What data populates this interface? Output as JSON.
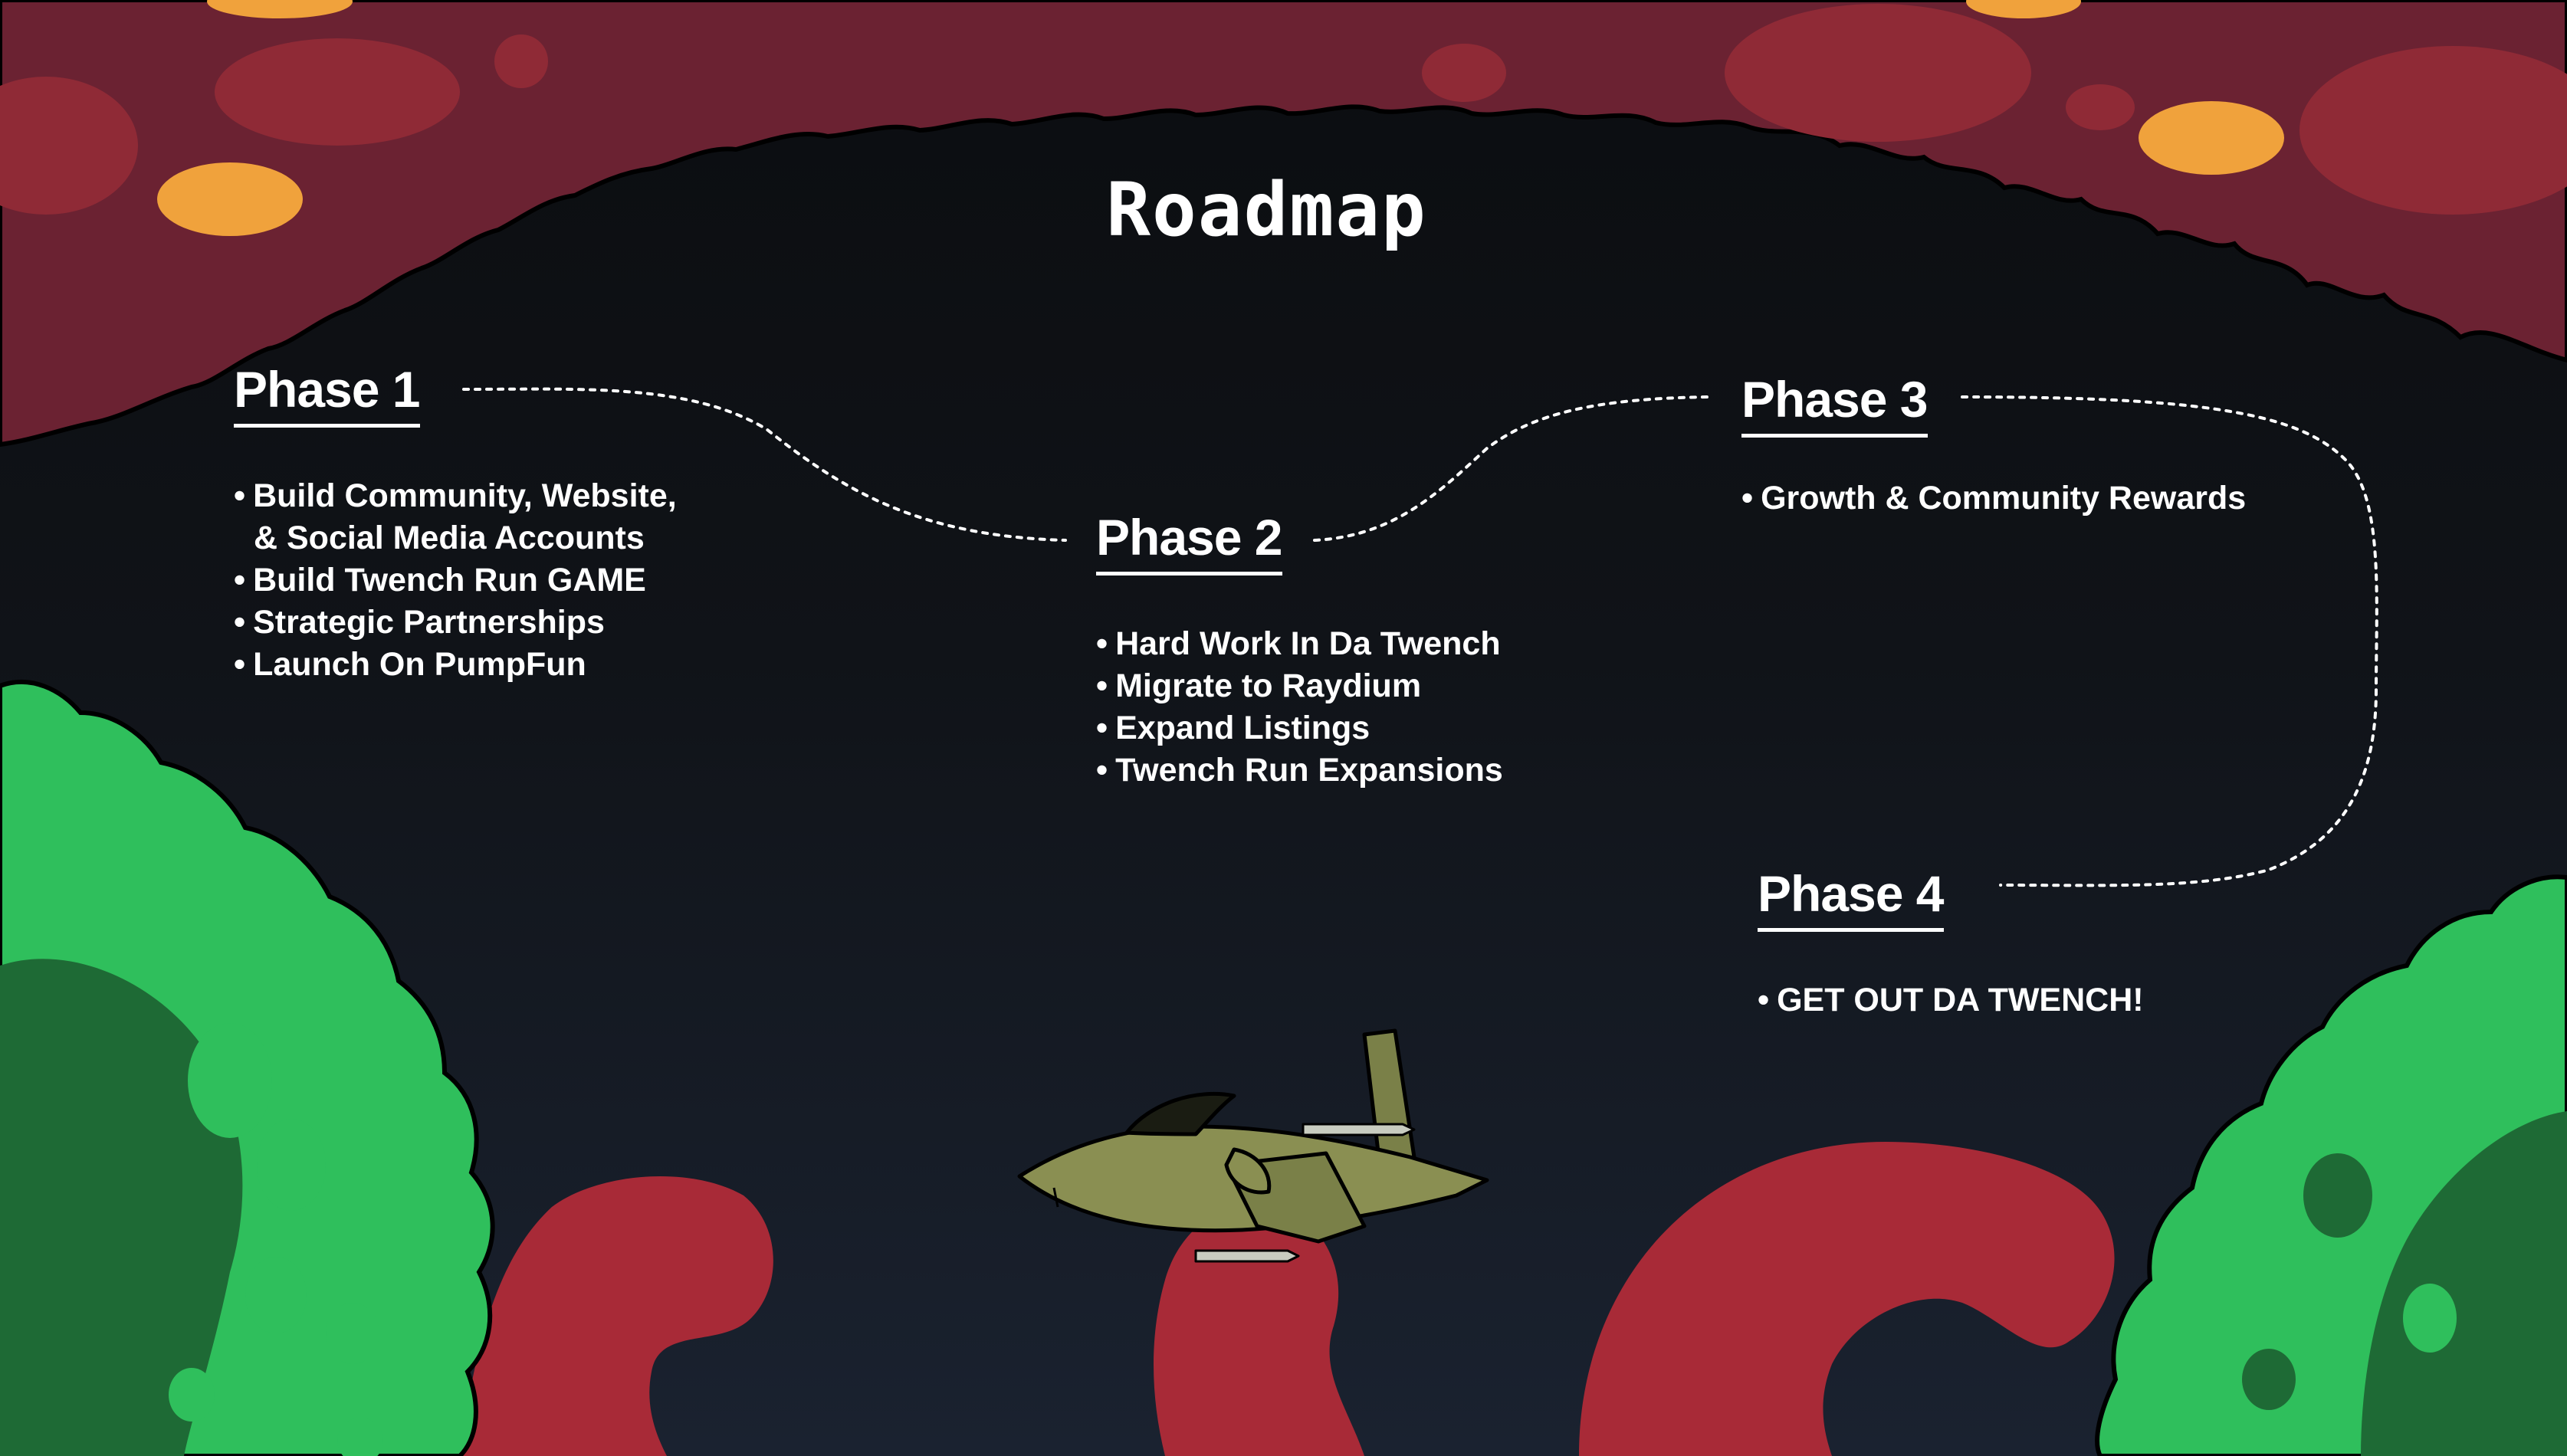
{
  "page": {
    "title": "Roadmap"
  },
  "colors": {
    "background": "#0b0d10",
    "canopy": "#6b2232",
    "canopy_spot": "#8f2a36",
    "orange_spot": "#f0a23c",
    "bush_dark": "#1e6a35",
    "bush_light": "#2fbf5c",
    "smoke": "#a82a37",
    "jet": "#8a8f52",
    "path": "#ffffff"
  },
  "phases": [
    {
      "title": "Phase 1",
      "items": [
        {
          "text": "Build Community, Website,"
        },
        {
          "text": "& Social Media Accounts",
          "continuation": true
        },
        {
          "text": "Build Twench Run GAME"
        },
        {
          "text": "Strategic Partnerships"
        },
        {
          "text": "Launch On PumpFun"
        }
      ]
    },
    {
      "title": "Phase 2",
      "items": [
        {
          "text": "Hard Work In Da Twench"
        },
        {
          "text": "Migrate to Raydium"
        },
        {
          "text": "Expand Listings"
        },
        {
          "text": "Twench Run Expansions"
        }
      ]
    },
    {
      "title": "Phase 3",
      "items": [
        {
          "text": "Growth & Community Rewards"
        }
      ]
    },
    {
      "title": "Phase 4",
      "items": [
        {
          "text": "GET OUT DA TWENCH!"
        }
      ]
    }
  ],
  "icons": {
    "jet": "fighter-jet-icon"
  }
}
